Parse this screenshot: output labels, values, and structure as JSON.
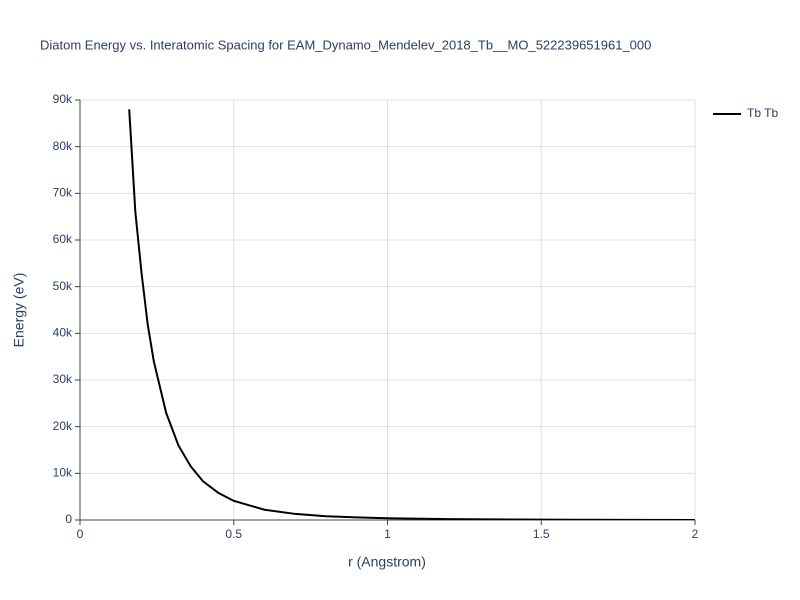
{
  "chart_data": {
    "type": "line",
    "title": "Diatom Energy vs. Interatomic Spacing for EAM_Dynamo_Mendelev_2018_Tb__MO_522239651961_000",
    "x_label": "r (Angstrom)",
    "y_label": "Energy (eV)",
    "x": [
      0.16,
      0.18,
      0.2,
      0.22,
      0.24,
      0.28,
      0.32,
      0.36,
      0.4,
      0.45,
      0.5,
      0.6,
      0.7,
      0.8,
      0.9,
      1.0,
      1.2,
      1.4,
      1.6,
      1.8,
      2.0
    ],
    "series": [
      {
        "name": "Tb Tb",
        "color": "#000000",
        "values": [
          88000,
          66000,
          53000,
          42000,
          34000,
          23000,
          16000,
          11500,
          8300,
          5800,
          4100,
          2200,
          1300,
          800,
          550,
          380,
          200,
          110,
          60,
          30,
          10
        ]
      }
    ],
    "xlim": [
      0,
      2
    ],
    "xticks": [
      0,
      0.5,
      1,
      1.5,
      2
    ],
    "ylim": [
      0,
      90000
    ],
    "yticks": [
      0,
      {
        "value": 10000,
        "label": "10k"
      },
      {
        "value": 20000,
        "label": "20k"
      },
      {
        "value": 30000,
        "label": "30k"
      },
      {
        "value": 40000,
        "label": "40k"
      },
      {
        "value": 50000,
        "label": "50k"
      },
      {
        "value": 60000,
        "label": "60k"
      },
      {
        "value": 70000,
        "label": "70k"
      },
      {
        "value": 80000,
        "label": "80k"
      },
      {
        "value": 90000,
        "label": "90k"
      }
    ],
    "grid": true,
    "legend": "top-right"
  }
}
